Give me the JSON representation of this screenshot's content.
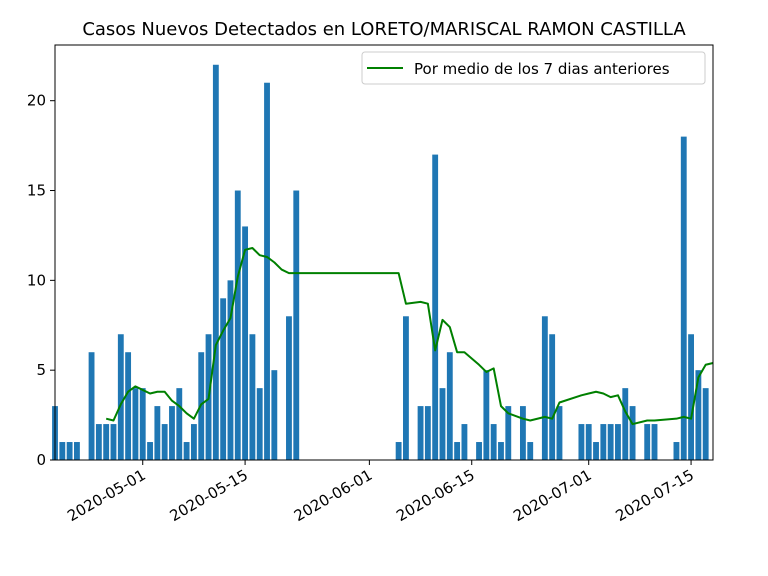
{
  "chart_data": {
    "type": "bar",
    "title": "Casos Nuevos Detectados en LORETO/MARISCAL RAMON CASTILLA",
    "xlabel": "",
    "ylabel": "",
    "x_type": "date",
    "xlim": [
      "2020-04-19",
      "2020-07-18"
    ],
    "ylim": [
      0,
      23.1
    ],
    "yticks": [
      0,
      5,
      10,
      15,
      20
    ],
    "xticks": [
      "2020-05-01",
      "2020-05-15",
      "2020-06-01",
      "2020-06-15",
      "2020-07-01",
      "2020-07-15"
    ],
    "grid": false,
    "legend_position": "top-right",
    "bar_color": "#1f77b4",
    "line_color": "#008000",
    "series": [
      {
        "kind": "bar",
        "x": [
          "2020-04-19",
          "2020-04-20",
          "2020-04-21",
          "2020-04-22",
          "2020-04-24",
          "2020-04-25",
          "2020-04-26",
          "2020-04-27",
          "2020-04-28",
          "2020-04-29",
          "2020-04-30",
          "2020-05-01",
          "2020-05-02",
          "2020-05-03",
          "2020-05-04",
          "2020-05-05",
          "2020-05-06",
          "2020-05-07",
          "2020-05-08",
          "2020-05-09",
          "2020-05-10",
          "2020-05-11",
          "2020-05-12",
          "2020-05-13",
          "2020-05-14",
          "2020-05-15",
          "2020-05-16",
          "2020-05-17",
          "2020-05-18",
          "2020-05-19",
          "2020-05-21",
          "2020-05-22",
          "2020-06-05",
          "2020-06-06",
          "2020-06-08",
          "2020-06-09",
          "2020-06-10",
          "2020-06-11",
          "2020-06-12",
          "2020-06-13",
          "2020-06-14",
          "2020-06-16",
          "2020-06-17",
          "2020-06-18",
          "2020-06-19",
          "2020-06-20",
          "2020-06-22",
          "2020-06-23",
          "2020-06-25",
          "2020-06-26",
          "2020-06-27",
          "2020-06-30",
          "2020-07-01",
          "2020-07-02",
          "2020-07-03",
          "2020-07-04",
          "2020-07-05",
          "2020-07-06",
          "2020-07-07",
          "2020-07-09",
          "2020-07-10",
          "2020-07-13",
          "2020-07-14",
          "2020-07-15",
          "2020-07-16",
          "2020-07-17"
        ],
        "values": [
          3,
          1,
          1,
          1,
          6,
          2,
          2,
          2,
          7,
          6,
          4,
          4,
          1,
          3,
          2,
          3,
          4,
          1,
          2,
          6,
          7,
          22,
          9,
          10,
          15,
          13,
          7,
          4,
          21,
          5,
          8,
          15,
          1,
          8,
          3,
          3,
          17,
          4,
          6,
          1,
          2,
          1,
          5,
          2,
          1,
          3,
          3,
          1,
          8,
          7,
          3,
          2,
          2,
          1,
          2,
          2,
          2,
          4,
          3,
          2,
          2,
          1,
          18,
          7,
          5,
          4
        ]
      },
      {
        "kind": "line",
        "name": "Por medio de los 7 dias anteriores",
        "x": [
          "2020-04-26",
          "2020-04-27",
          "2020-04-28",
          "2020-04-29",
          "2020-04-30",
          "2020-05-01",
          "2020-05-02",
          "2020-05-03",
          "2020-05-04",
          "2020-05-05",
          "2020-05-06",
          "2020-05-07",
          "2020-05-08",
          "2020-05-09",
          "2020-05-10",
          "2020-05-11",
          "2020-05-12",
          "2020-05-13",
          "2020-05-14",
          "2020-05-15",
          "2020-05-16",
          "2020-05-17",
          "2020-05-18",
          "2020-05-19",
          "2020-05-20",
          "2020-05-21",
          "2020-05-22",
          "2020-06-05",
          "2020-06-06",
          "2020-06-08",
          "2020-06-09",
          "2020-06-10",
          "2020-06-11",
          "2020-06-12",
          "2020-06-13",
          "2020-06-14",
          "2020-06-16",
          "2020-06-17",
          "2020-06-18",
          "2020-06-19",
          "2020-06-20",
          "2020-06-22",
          "2020-06-23",
          "2020-06-25",
          "2020-06-26",
          "2020-06-27",
          "2020-06-30",
          "2020-07-01",
          "2020-07-02",
          "2020-07-03",
          "2020-07-04",
          "2020-07-05",
          "2020-07-06",
          "2020-07-07",
          "2020-07-09",
          "2020-07-10",
          "2020-07-13",
          "2020-07-14",
          "2020-07-15",
          "2020-07-16",
          "2020-07-17",
          "2020-07-18"
        ],
        "values": [
          2.3,
          2.2,
          3.1,
          3.8,
          4.1,
          3.9,
          3.7,
          3.8,
          3.8,
          3.3,
          3.0,
          2.6,
          2.3,
          3.1,
          3.4,
          6.4,
          7.2,
          7.9,
          10.2,
          11.7,
          11.8,
          11.4,
          11.3,
          11.0,
          10.6,
          10.4,
          10.4,
          10.4,
          8.7,
          8.8,
          8.7,
          6.1,
          7.8,
          7.4,
          6.0,
          6.0,
          5.3,
          4.9,
          5.1,
          3.0,
          2.6,
          2.3,
          2.2,
          2.4,
          2.3,
          3.2,
          3.6,
          3.7,
          3.8,
          3.7,
          3.5,
          3.6,
          2.7,
          2.0,
          2.2,
          2.2,
          2.3,
          2.4,
          2.3,
          4.6,
          5.3,
          5.4
        ]
      }
    ]
  }
}
